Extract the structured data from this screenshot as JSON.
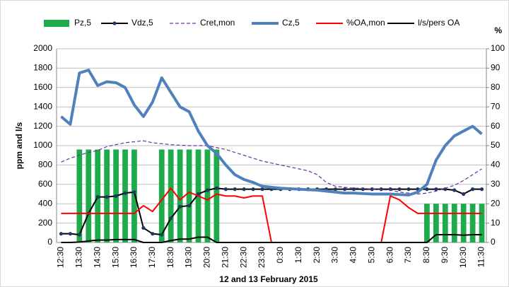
{
  "chart_data": {
    "type": "combo",
    "x_label": "12 and 13 February 2015",
    "y_label": "ppm and l/s",
    "y2_label": "%",
    "categories": [
      "12:30",
      null,
      "13:30",
      null,
      "14:30",
      null,
      "15:30",
      null,
      "16:30",
      null,
      "17:30",
      null,
      "18:30",
      null,
      "19:30",
      null,
      "20:30",
      null,
      "21:30",
      null,
      "22:30",
      null,
      "23:30",
      null,
      "0:30",
      null,
      "1:30",
      null,
      "2:30",
      null,
      "3:30",
      null,
      "4:30",
      null,
      "5:30",
      null,
      "6:30",
      null,
      "7:30",
      null,
      "8:30",
      null,
      "9:30",
      null,
      "10:30",
      null,
      "11:30"
    ],
    "ylim": [
      0,
      2000
    ],
    "yticks": [
      0,
      200,
      400,
      600,
      800,
      1000,
      1200,
      1400,
      1600,
      1800,
      2000
    ],
    "y2lim": [
      0,
      100
    ],
    "y2ticks": [
      0,
      10,
      20,
      30,
      40,
      50,
      60,
      70,
      80,
      90,
      100
    ],
    "grid": true,
    "legend": "top",
    "series": [
      {
        "name": "Pz,5",
        "type": "bar",
        "axis": "y2",
        "color": "#1faa4b",
        "values": [
          null,
          null,
          48,
          48,
          48,
          48,
          48,
          48,
          48,
          null,
          null,
          48,
          48,
          48,
          48,
          48,
          48,
          48,
          null,
          null,
          null,
          null,
          null,
          null,
          null,
          null,
          null,
          null,
          null,
          null,
          null,
          null,
          null,
          null,
          null,
          null,
          null,
          null,
          null,
          null,
          20,
          20,
          20,
          20,
          20,
          20,
          20
        ]
      },
      {
        "name": "Vdz,5",
        "type": "line",
        "color": "#000000",
        "marker": "#1f3864",
        "width": 2,
        "values": [
          90,
          90,
          80,
          300,
          470,
          470,
          480,
          510,
          520,
          150,
          90,
          80,
          250,
          370,
          380,
          500,
          540,
          560,
          550,
          550,
          550,
          550,
          550,
          550,
          550,
          550,
          550,
          550,
          550,
          550,
          550,
          550,
          550,
          550,
          550,
          550,
          550,
          550,
          550,
          550,
          550,
          550,
          550,
          540,
          500,
          550,
          550
        ]
      },
      {
        "name": "Cret,mon",
        "type": "line",
        "color": "#7030a0",
        "dash": true,
        "width": 1.2,
        "values": [
          830,
          870,
          900,
          930,
          950,
          990,
          1010,
          1030,
          1040,
          1050,
          1030,
          1020,
          1010,
          1005,
          1000,
          1000,
          1000,
          980,
          960,
          930,
          900,
          870,
          840,
          820,
          800,
          780,
          760,
          740,
          700,
          620,
          580,
          570,
          560,
          560,
          550,
          545,
          540,
          520,
          510,
          500,
          510,
          530,
          560,
          590,
          640,
          700,
          760
        ]
      },
      {
        "name": "Cz,5",
        "type": "line",
        "color": "#4f81bd",
        "width": 4,
        "values": [
          1300,
          1220,
          1750,
          1780,
          1620,
          1660,
          1650,
          1600,
          1420,
          1300,
          1450,
          1700,
          1550,
          1400,
          1350,
          1150,
          1000,
          920,
          800,
          700,
          650,
          620,
          580,
          570,
          560,
          555,
          550,
          545,
          540,
          530,
          520,
          510,
          510,
          505,
          500,
          500,
          500,
          495,
          490,
          520,
          600,
          850,
          1000,
          1100,
          1150,
          1200,
          1120
        ]
      },
      {
        "name": "%OA,mon",
        "type": "line",
        "axis": "y2",
        "color": "#ff0000",
        "width": 2,
        "values": [
          15,
          15,
          15,
          15,
          15,
          15,
          15,
          15,
          15,
          19,
          16,
          22,
          28,
          22,
          26,
          24,
          22,
          25,
          24,
          24,
          23,
          24,
          24,
          0,
          0,
          0,
          0,
          0,
          0,
          0,
          0,
          0,
          0,
          0,
          0,
          0,
          24,
          22,
          18,
          15,
          15,
          15,
          15,
          15,
          15,
          15,
          15
        ]
      },
      {
        "name": "l/s/pers OA",
        "type": "line",
        "color": "#000000",
        "width": 2,
        "values": [
          0,
          0,
          5,
          15,
          25,
          25,
          30,
          30,
          30,
          0,
          0,
          0,
          20,
          35,
          35,
          55,
          55,
          0,
          0,
          0,
          0,
          0,
          0,
          0,
          0,
          0,
          0,
          0,
          0,
          0,
          0,
          0,
          0,
          0,
          0,
          0,
          0,
          0,
          0,
          0,
          0,
          80,
          80,
          80,
          75,
          80,
          80
        ]
      }
    ]
  }
}
